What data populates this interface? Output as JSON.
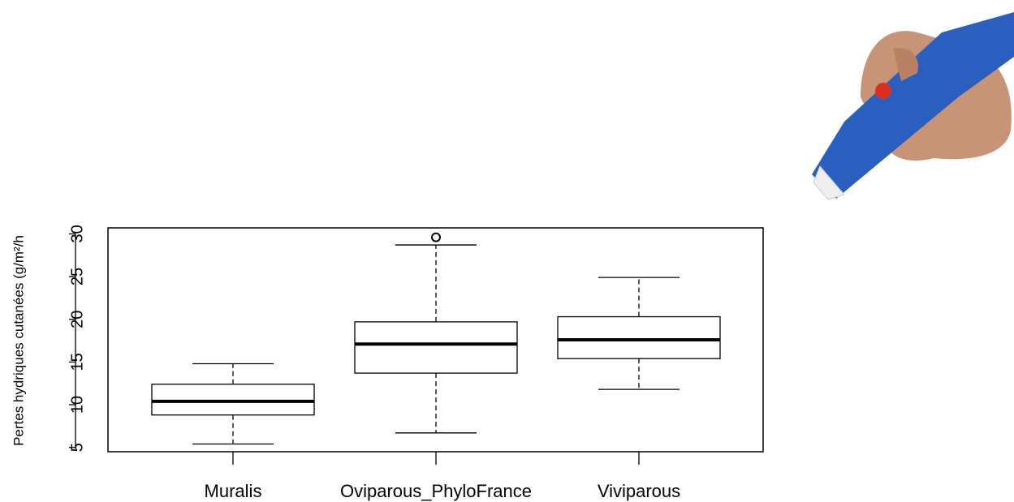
{
  "chart_data": {
    "type": "box",
    "ylabel": "Pertes hydriques cutanées (g/m²/h",
    "categories": [
      "Muralis",
      "Oviparous_PhyloFrance",
      "Viviparous"
    ],
    "boxes": [
      {
        "min": 5.4,
        "q1": 8.8,
        "median": 10.4,
        "q3": 12.4,
        "max": 14.8,
        "outliers": []
      },
      {
        "min": 6.7,
        "q1": 13.7,
        "median": 17.1,
        "q3": 19.7,
        "max": 28.7,
        "outliers": [
          29.6
        ]
      },
      {
        "min": 11.8,
        "q1": 15.4,
        "median": 17.6,
        "q3": 20.3,
        "max": 24.9,
        "outliers": []
      }
    ],
    "ylim": [
      4.5,
      30.7
    ],
    "yticks": [
      5,
      10,
      15,
      20,
      25,
      30
    ]
  }
}
